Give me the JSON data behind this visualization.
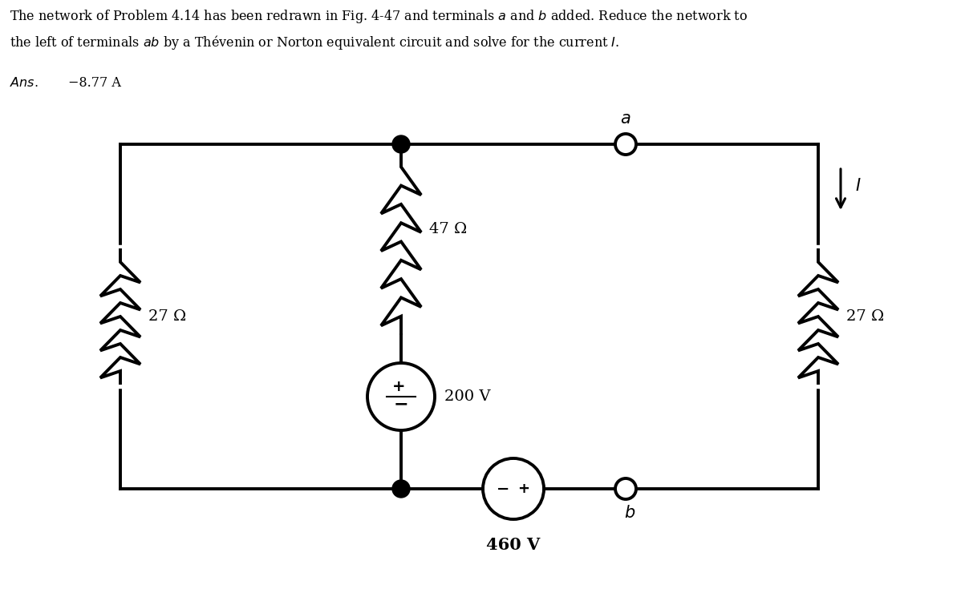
{
  "bg_color": "#ffffff",
  "line_color": "#000000",
  "line_width": 2.8,
  "resistor_47_label": "47 Ω",
  "resistor_27L_label": "27 Ω",
  "resistor_27R_label": "27 Ω",
  "voltage_200_label": "200 V",
  "voltage_460_label": "460 V",
  "terminal_a_label": "a",
  "terminal_b_label": "b",
  "current_label": "I",
  "xl": 1.5,
  "xm": 5.0,
  "xr": 10.2,
  "xa_term": 7.8,
  "xb_term": 7.8,
  "ya": 5.8,
  "yb": 1.5,
  "v200_r": 0.42,
  "v460_r": 0.38,
  "term_r": 0.13,
  "dot_r": 0.11,
  "res_amp": 0.25,
  "font_size_text": 11.5,
  "font_size_label": 14,
  "font_size_terminal": 15
}
